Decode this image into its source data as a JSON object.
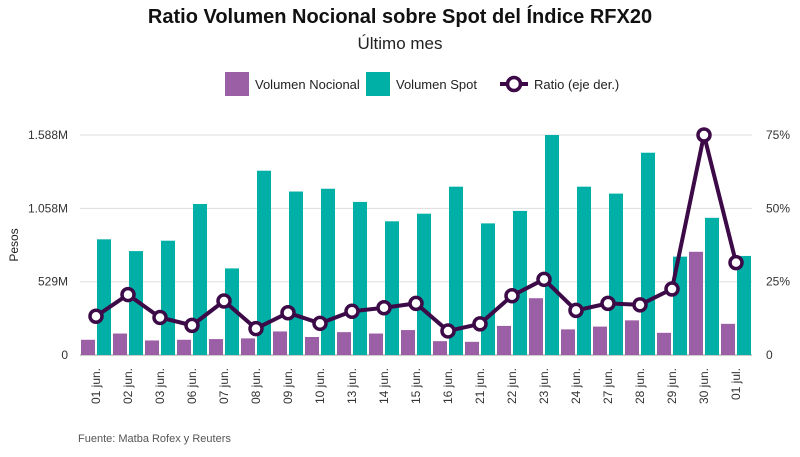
{
  "title": "Ratio Volumen Nocional sobre Spot del Índice RFX20",
  "subtitle": "Último mes",
  "source": "Fuente: Matba Rofex y Reuters",
  "colors": {
    "nocional": "#9b5fa6",
    "spot": "#00afa5",
    "ratio": "#3c0a47",
    "grid": "#dddddd"
  },
  "chart_data": {
    "type": "bar",
    "categories": [
      "01 jun.",
      "02 jun.",
      "03 jun.",
      "06 jun.",
      "07 jun.",
      "08 jun.",
      "09 jun.",
      "10 jun.",
      "13 jun.",
      "14 jun.",
      "15 jun.",
      "16 jun.",
      "21 jun.",
      "22 jun.",
      "23 jun.",
      "24 jun.",
      "27 jun.",
      "28 jun.",
      "29 jun.",
      "30 jun.",
      "01 jul."
    ],
    "ylabel": "Pesos",
    "ylim": [
      0,
      1588
    ],
    "y_ticks": [
      0,
      529,
      1058,
      1588
    ],
    "y_tick_labels": [
      "0",
      "529M",
      "1.058M",
      "1.588M"
    ],
    "y2lim": [
      0,
      75
    ],
    "y2_ticks": [
      0,
      25,
      50,
      75
    ],
    "y2_tick_labels": [
      "0",
      "25%",
      "50%",
      "75%"
    ],
    "legend_position": "top",
    "grid": true,
    "series": [
      {
        "name": "Volumen Nocional",
        "type": "bar",
        "values": [
          110,
          155,
          105,
          110,
          115,
          120,
          170,
          130,
          165,
          155,
          180,
          100,
          95,
          210,
          410,
          185,
          205,
          250,
          160,
          745,
          225
        ]
      },
      {
        "name": "Volumen Spot",
        "type": "bar",
        "values": [
          835,
          750,
          825,
          1090,
          625,
          1330,
          1180,
          1200,
          1105,
          965,
          1020,
          1215,
          950,
          1040,
          1588,
          1215,
          1165,
          1460,
          710,
          990,
          715
        ]
      },
      {
        "name": "Ratio (eje der.)",
        "type": "line",
        "axis": "right",
        "values": [
          13.2,
          20.6,
          12.8,
          10.1,
          18.4,
          9.0,
          14.4,
          10.8,
          14.9,
          16.1,
          17.6,
          8.2,
          10.6,
          20.2,
          25.8,
          15.2,
          17.6,
          17.1,
          22.5,
          75.0,
          31.5
        ]
      }
    ]
  }
}
